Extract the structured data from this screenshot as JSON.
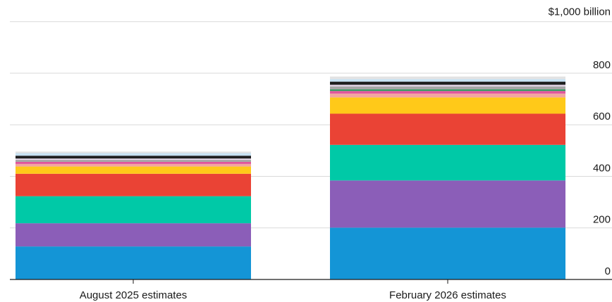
{
  "chart_data": {
    "type": "bar",
    "stacked": true,
    "title": "",
    "xlabel": "",
    "ylabel": "",
    "unit_label": "$1,000 billion",
    "ylim": [
      0,
      1000
    ],
    "yticks": [
      0,
      200,
      400,
      600,
      800
    ],
    "grid": true,
    "categories": [
      "August 2025 estimates",
      "February 2026 estimates"
    ],
    "series": [
      {
        "color": "#1495d6",
        "values": [
          128,
          201
        ]
      },
      {
        "color": "#8b5eb8",
        "values": [
          90,
          183
        ]
      },
      {
        "color": "#00c9a7",
        "values": [
          105,
          138
        ]
      },
      {
        "color": "#ea4335",
        "values": [
          87,
          121
        ]
      },
      {
        "color": "#ffc919",
        "values": [
          28,
          63
        ]
      },
      {
        "color": "#f2a6a0",
        "values": [
          10,
          15
        ]
      },
      {
        "color": "#e0559b",
        "values": [
          8,
          10
        ]
      },
      {
        "color": "#2e9e5f",
        "values": [
          0,
          6
        ]
      },
      {
        "color": "#a6a6a6",
        "values": [
          8,
          12
        ]
      },
      {
        "color": "#e8d9ec",
        "values": [
          5,
          6
        ]
      },
      {
        "color": "#1f1f1f",
        "values": [
          11,
          12
        ]
      },
      {
        "color": "#c6e1f2",
        "values": [
          10,
          10
        ]
      },
      {
        "color": "#e3e3e3",
        "values": [
          6,
          10
        ]
      }
    ]
  }
}
